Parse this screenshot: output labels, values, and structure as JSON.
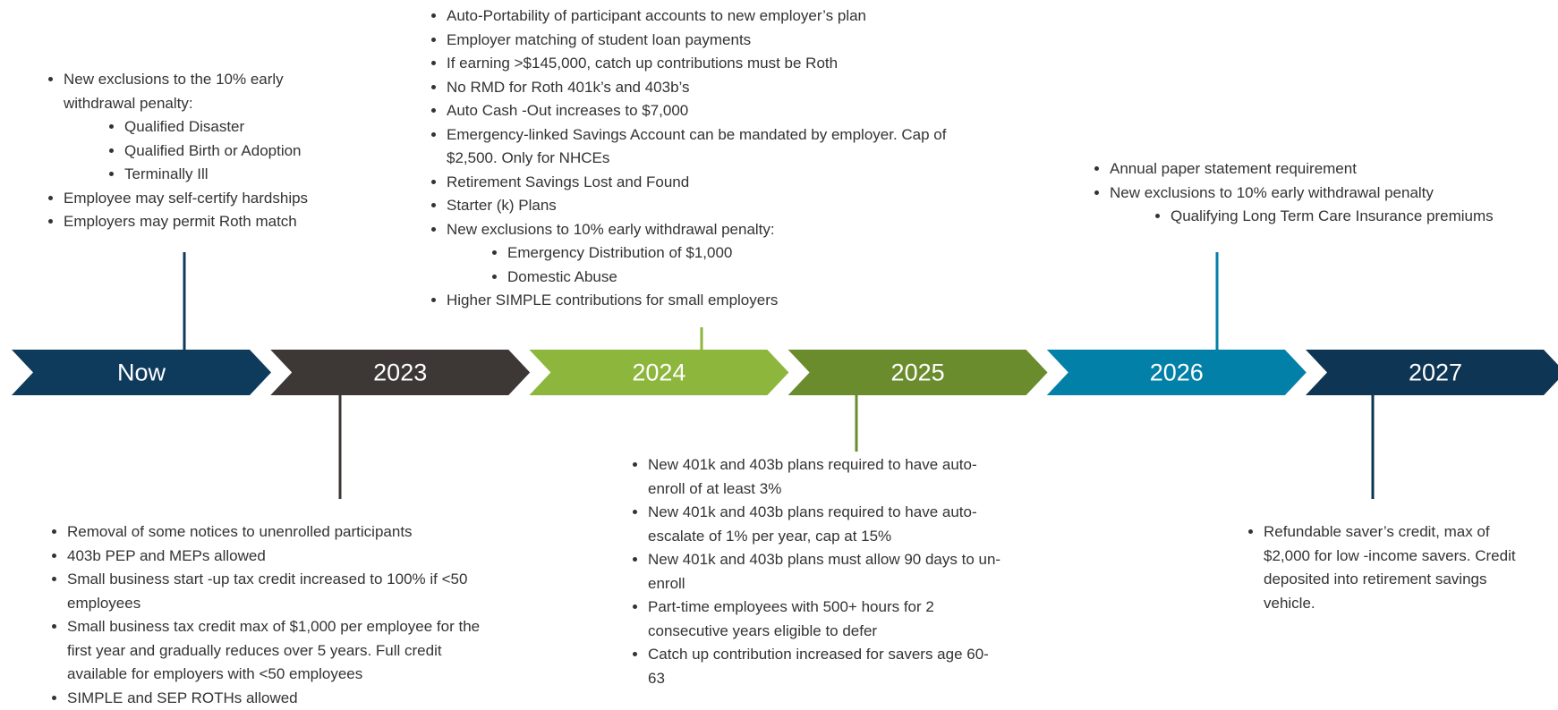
{
  "stages": [
    {
      "label": "Now",
      "color": "#0e3a5c",
      "items": [
        {
          "text": "New exclusions to the 10% early withdrawal penalty:",
          "sub": [
            "Qualified Disaster",
            "Qualified Birth or Adoption",
            "Terminally Ill"
          ]
        },
        {
          "text": "Employee may self-certify hardships"
        },
        {
          "text": "Employers may permit Roth match"
        }
      ]
    },
    {
      "label": "2023",
      "color": "#3d3835",
      "items": [
        {
          "text": "Removal of some notices to unenrolled participants"
        },
        {
          "text": "403b PEP and MEPs allowed"
        },
        {
          "text": "Small business start -up tax credit increased to 100% if <50 employees"
        },
        {
          "text": "Small business tax credit max of $1,000 per employee for the first year and gradually reduces over 5 years. Full credit available for employers with <50 employees"
        },
        {
          "text": "SIMPLE and SEP ROTHs allowed"
        }
      ]
    },
    {
      "label": "2024",
      "color": "#8db63c",
      "items": [
        {
          "text": "Auto-Portability of participant accounts to new employer’s plan"
        },
        {
          "text": "Employer matching of student loan payments"
        },
        {
          "text": "If earning >$145,000, catch up contributions must be Roth"
        },
        {
          "text": "No RMD for Roth 401k’s and 403b’s"
        },
        {
          "text": "Auto Cash -Out increases to $7,000"
        },
        {
          "text": "Emergency-linked Savings Account can be mandated by employer. Cap of $2,500. Only for NHCEs"
        },
        {
          "text": "Retirement Savings Lost and Found"
        },
        {
          "text": "Starter (k) Plans"
        },
        {
          "text": "New exclusions to 10% early withdrawal penalty:",
          "sub": [
            "Emergency Distribution of $1,000",
            "Domestic Abuse"
          ]
        },
        {
          "text": "Higher SIMPLE contributions for small employers"
        }
      ]
    },
    {
      "label": "2025",
      "color": "#6a8c2c",
      "items": [
        {
          "text": "New 401k and 403b plans required to have auto-enroll of at least 3%"
        },
        {
          "text": "New 401k and 403b plans required to have auto-escalate of 1% per year, cap at 15%"
        },
        {
          "text": "New 401k and 403b plans must allow 90 days to un-enroll"
        },
        {
          "text": "Part-time employees with 500+ hours for 2 consecutive years eligible to defer"
        },
        {
          "text": "Catch up contribution increased for savers age 60-63"
        }
      ]
    },
    {
      "label": "2026",
      "color": "#0380a8",
      "items": [
        {
          "text": "Annual paper statement requirement"
        },
        {
          "text": "New exclusions to 10% early withdrawal penalty",
          "sub": [
            "Qualifying Long Term Care Insurance premiums"
          ]
        }
      ]
    },
    {
      "label": "2027",
      "color": "#0e3554",
      "items": [
        {
          "text": "Refundable saver’s credit, max of $2,000 for low -income savers. Credit deposited into retirement savings vehicle."
        }
      ]
    }
  ]
}
